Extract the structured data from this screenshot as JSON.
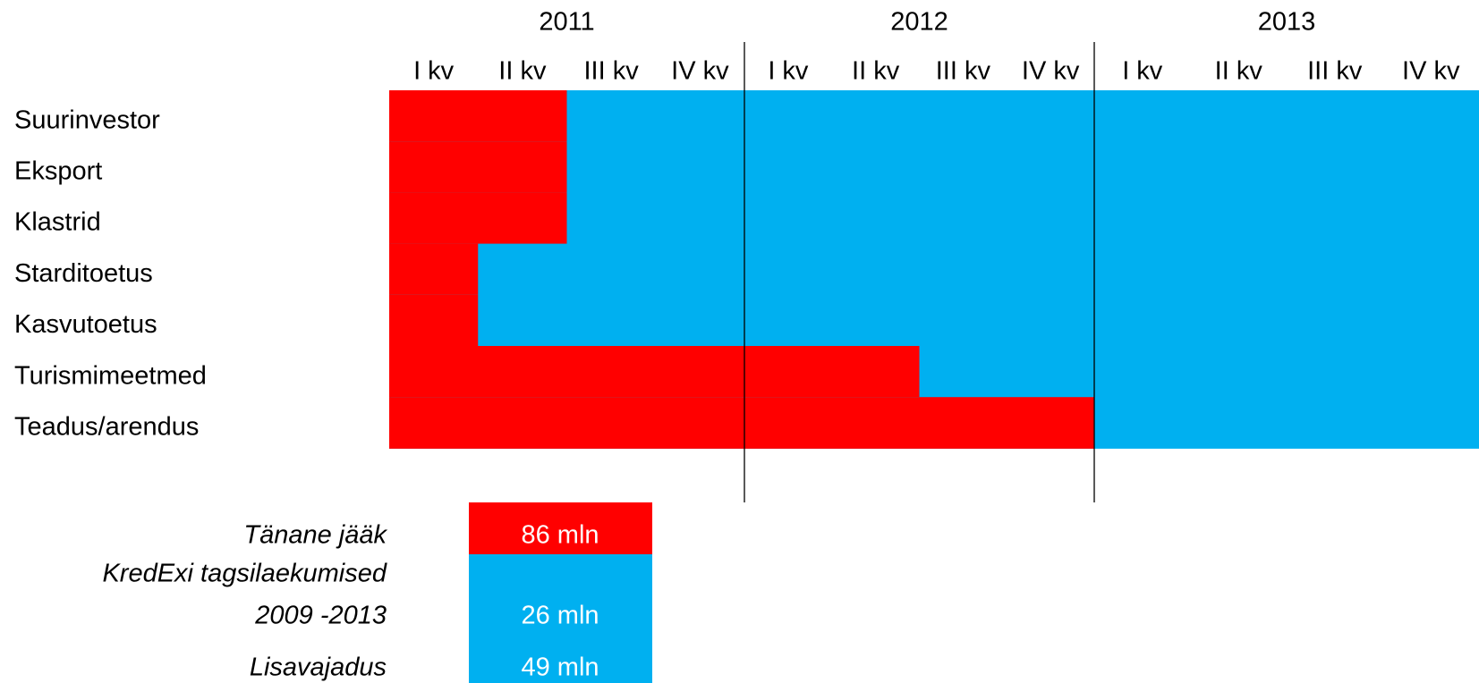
{
  "chart_data": {
    "type": "timeline",
    "years": [
      "2011",
      "2012",
      "2013"
    ],
    "quarters": [
      "I kv",
      "II kv",
      "III kv",
      "IV kv"
    ],
    "rows": [
      {
        "label": "Suurinvestor",
        "red_quarters": 2
      },
      {
        "label": "Eksport",
        "red_quarters": 2
      },
      {
        "label": "Klastrid",
        "red_quarters": 2
      },
      {
        "label": "Starditoetus",
        "red_quarters": 1
      },
      {
        "label": "Kasvutoetus",
        "red_quarters": 1
      },
      {
        "label": "Turismimeetmed",
        "red_quarters": 6
      },
      {
        "label": "Teadus/arendus",
        "red_quarters": 8
      }
    ],
    "red_color": "#ff0000",
    "blue_color": "#00b0f0"
  },
  "summary": [
    {
      "lines": [
        "Tänane jääk"
      ],
      "value": "86 mln",
      "color": "#ff0000"
    },
    {
      "lines": [
        "KredExi tagsilaekumised",
        "2009 -2013"
      ],
      "value": "26 mln",
      "color": "#00b0f0"
    },
    {
      "lines": [
        "Lisavajadus"
      ],
      "value": "49 mln",
      "color": "#00b0f0"
    }
  ]
}
